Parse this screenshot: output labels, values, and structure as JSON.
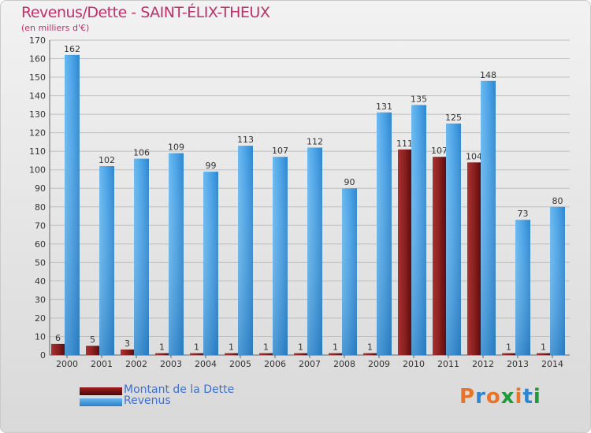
{
  "title": "Revenus/Dette - SAINT-ÉLIX-THEUX",
  "subtitle": "(en milliers d'€)",
  "logo": {
    "text": "Proxiti"
  },
  "colors": {
    "title": "#c0306a",
    "dette": "#7a1414",
    "revenus": "#3d9ae0",
    "legend_text": "#3d70d4",
    "grid": "#bfbfbf"
  },
  "chart_data": {
    "type": "bar",
    "title": "Revenus/Dette - SAINT-ÉLIX-THEUX",
    "subtitle": "(en milliers d'€)",
    "categories": [
      "2000",
      "2001",
      "2002",
      "2003",
      "2004",
      "2005",
      "2006",
      "2007",
      "2008",
      "2009",
      "2010",
      "2011",
      "2012",
      "2013",
      "2014"
    ],
    "series": [
      {
        "name": "Montant de la Dette",
        "color": "#7a1414",
        "values": [
          6,
          5,
          3,
          1,
          1,
          1,
          1,
          1,
          1,
          1,
          111,
          107,
          104,
          1,
          1
        ]
      },
      {
        "name": "Revenus",
        "color": "#3d9ae0",
        "values": [
          162,
          102,
          106,
          109,
          99,
          113,
          107,
          112,
          90,
          131,
          135,
          125,
          148,
          73,
          80
        ]
      }
    ],
    "ylim": [
      0,
      170
    ],
    "yticks": [
      0,
      10,
      20,
      30,
      40,
      50,
      60,
      70,
      80,
      90,
      100,
      110,
      120,
      130,
      140,
      150,
      160,
      170
    ],
    "grid": true,
    "legend": "bottom-left",
    "xlabel": "",
    "ylabel": ""
  }
}
